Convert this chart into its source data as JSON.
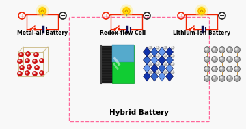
{
  "bg_color": "#f8f8f8",
  "title": "Hybrid Battery",
  "title_fontsize": 7.5,
  "label_metal_air": "Metal-air Battery",
  "label_redox": "Redox-flow Cell",
  "label_lithium": "Lithium-ion Battery",
  "label_fontsize": 5.5,
  "circuit_color": "#ee2200",
  "battery_color": "#111155",
  "plus_color": "#ee2200",
  "minus_color": "#222222",
  "bulb_yellow": "#ffdd00",
  "bulb_outer": "#ffaa00",
  "box_color": "#ff6699",
  "redox_green": "#11cc33",
  "redox_teal": "#55aacc",
  "redox_dark": "#1a1a1a",
  "crystal_dark_blue": "#1133aa",
  "crystal_mid_blue": "#3366cc",
  "crystal_light_blue": "#6699ee",
  "atom_red": "#cc1111",
  "atom_gray": "#aaaaaa",
  "frame_tan": "#ccbb88",
  "layered_gold": "#cc9944",
  "layered_sphere": "#aaaaaa"
}
